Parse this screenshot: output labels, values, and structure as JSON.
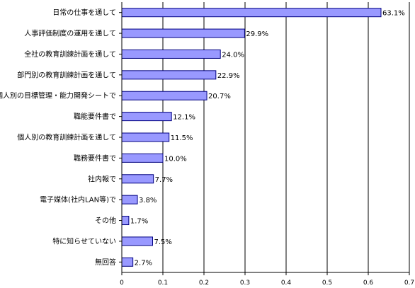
{
  "chart_data": {
    "type": "bar",
    "orientation": "horizontal",
    "categories": [
      "日常の仕事を通して",
      "人事評価制度の運用を通して",
      "全社の教育訓練計画を通して",
      "部門別の教育訓練計画を通して",
      "個人別の目標管理・能力開発シートで",
      "職能要件書で",
      "個人別の教育訓練計画を通して",
      "職務要件書で",
      "社内報で",
      "電子媒体(社内LAN等)で",
      "その他",
      "特に知らせていない",
      "無回答"
    ],
    "values": [
      0.631,
      0.299,
      0.24,
      0.229,
      0.207,
      0.121,
      0.115,
      0.1,
      0.077,
      0.038,
      0.017,
      0.075,
      0.027
    ],
    "value_labels": [
      "63.1%",
      "29.9%",
      "24.0%",
      "22.9%",
      "20.7%",
      "12.1%",
      "11.5%",
      "10.0%",
      "7.7%",
      "3.8%",
      "1.7%",
      "7.5%",
      "2.7%"
    ],
    "xlim": [
      0,
      0.7
    ],
    "xticks": [
      "0",
      "0.1",
      "0.2",
      "0.3",
      "0.4",
      "0.5",
      "0.6",
      "0.7"
    ],
    "grid": true,
    "bar_color": "#9999ff",
    "bar_edge_color": "#000080",
    "legend": false
  }
}
